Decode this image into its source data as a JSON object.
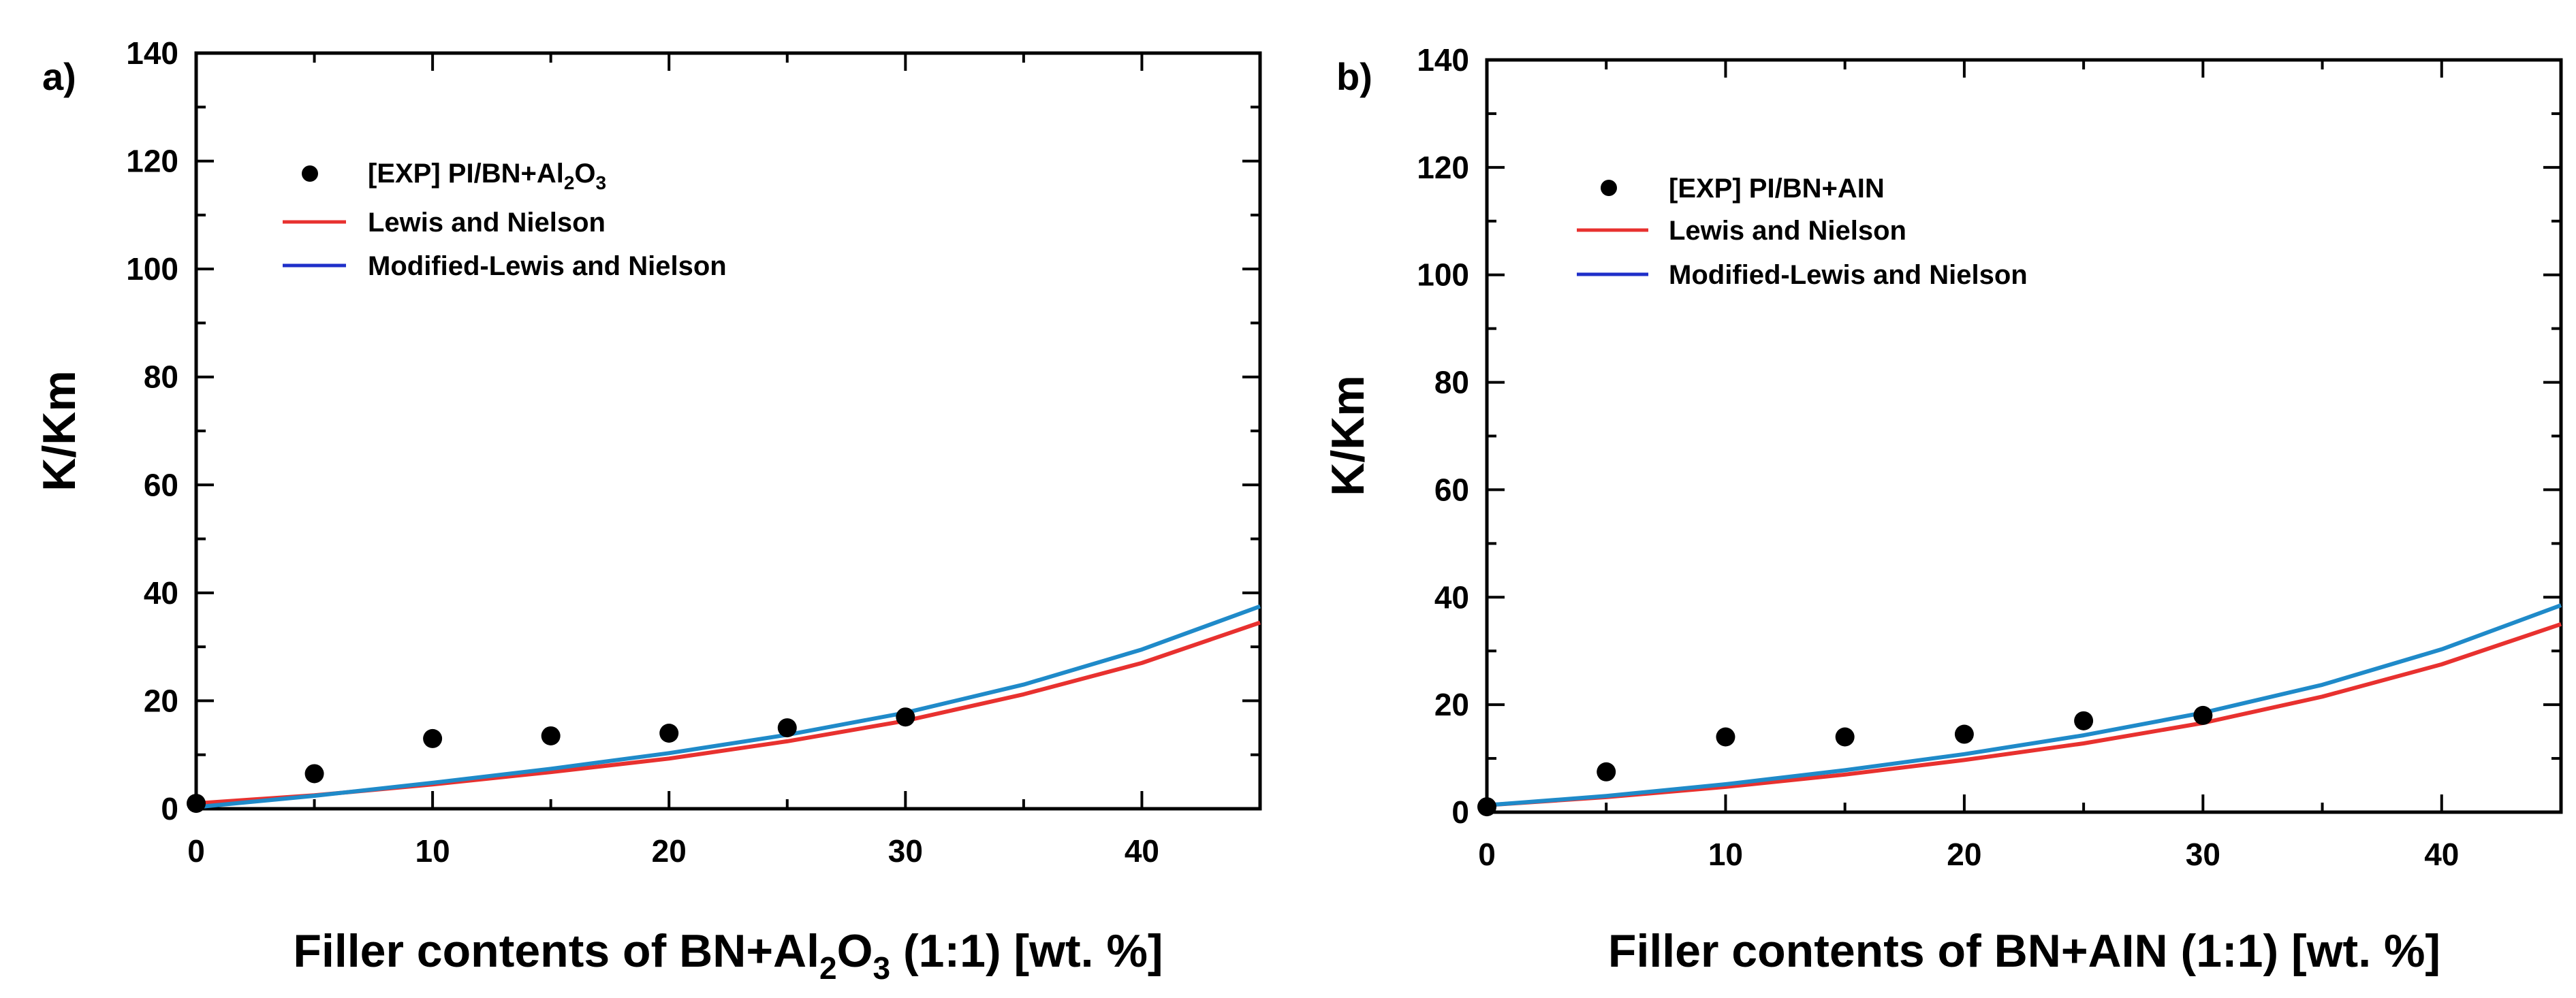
{
  "chart_data": [
    {
      "type": "scatter",
      "panel_label": "a)",
      "xlabel": "Filler contents of BN+Al2O3 (1:1) [wt. %]",
      "xlabel_parts": {
        "prefix": "Filler contents of BN+Al",
        "sub1": "2",
        "mid": "O",
        "sub2": "3",
        "suffix": " (1:1) [wt. %]"
      },
      "ylabel": "K/Km",
      "xlim": [
        0,
        45
      ],
      "ylim": [
        0,
        140
      ],
      "xticks": [
        0,
        10,
        20,
        30,
        40
      ],
      "yticks": [
        0,
        20,
        40,
        60,
        80,
        100,
        120,
        140
      ],
      "legend": {
        "placement": "top-left",
        "exp_label": "[EXP] PI/BN+Al2O3",
        "exp_label_parts": {
          "prefix": "[EXP] PI/BN+Al",
          "sub1": "2",
          "mid": "O",
          "sub2": "3"
        },
        "red_label": "Lewis and Nielson",
        "blue_label": "Modified-Lewis and Nielson"
      },
      "series": [
        {
          "name": "[EXP] PI/BN+Al2O3",
          "kind": "points",
          "color": "#000000",
          "x": [
            0,
            5,
            10,
            15,
            20,
            25,
            30
          ],
          "y": [
            1,
            6.5,
            13,
            13.5,
            14,
            15,
            17
          ]
        },
        {
          "name": "Lewis and Nielson",
          "kind": "line",
          "color": "#e8312f",
          "x": [
            0,
            5,
            10,
            15,
            20,
            25,
            30,
            35,
            40,
            45
          ],
          "y": [
            1,
            2.5,
            4.5,
            6.8,
            9.3,
            12.5,
            16.3,
            21.2,
            27,
            34.5
          ]
        },
        {
          "name": "Modified-Lewis and Nielson",
          "kind": "line",
          "color": "#1f8ac9",
          "x": [
            0,
            5,
            10,
            15,
            20,
            25,
            30,
            35,
            40,
            45
          ],
          "y": [
            0.3,
            2.4,
            4.8,
            7.4,
            10.3,
            13.7,
            17.8,
            23,
            29.5,
            37.5
          ]
        }
      ]
    },
    {
      "type": "scatter",
      "panel_label": "b)",
      "xlabel": "Filler contents of BN+AIN (1:1) [wt. %]",
      "ylabel": "K/Km",
      "xlim": [
        0,
        45
      ],
      "ylim": [
        0,
        140
      ],
      "xticks": [
        0,
        10,
        20,
        30,
        40
      ],
      "yticks": [
        0,
        20,
        40,
        60,
        80,
        100,
        120,
        140
      ],
      "legend": {
        "placement": "top-left",
        "exp_label": "[EXP] PI/BN+AIN",
        "red_label": "Lewis and Nielson",
        "blue_label": "Modified-Lewis and Nielson"
      },
      "series": [
        {
          "name": "[EXP] PI/BN+AIN",
          "kind": "points",
          "color": "#000000",
          "x": [
            0,
            5,
            10,
            15,
            20,
            25,
            30
          ],
          "y": [
            1,
            7.5,
            14,
            14,
            14.5,
            17,
            18
          ]
        },
        {
          "name": "Lewis and Nielson",
          "kind": "line",
          "color": "#e8312f",
          "x": [
            0,
            5,
            10,
            15,
            20,
            25,
            30,
            35,
            40,
            45
          ],
          "y": [
            1.3,
            2.8,
            4.7,
            7,
            9.7,
            12.8,
            16.6,
            21.5,
            27.5,
            35
          ]
        },
        {
          "name": "Modified-Lewis and Nielson",
          "kind": "line",
          "color": "#1f8ac9",
          "x": [
            0,
            5,
            10,
            15,
            20,
            25,
            30,
            35,
            40,
            45
          ],
          "y": [
            1.3,
            3,
            5.2,
            7.8,
            10.8,
            14.3,
            18.5,
            23.7,
            30.3,
            38.5
          ]
        }
      ]
    }
  ]
}
